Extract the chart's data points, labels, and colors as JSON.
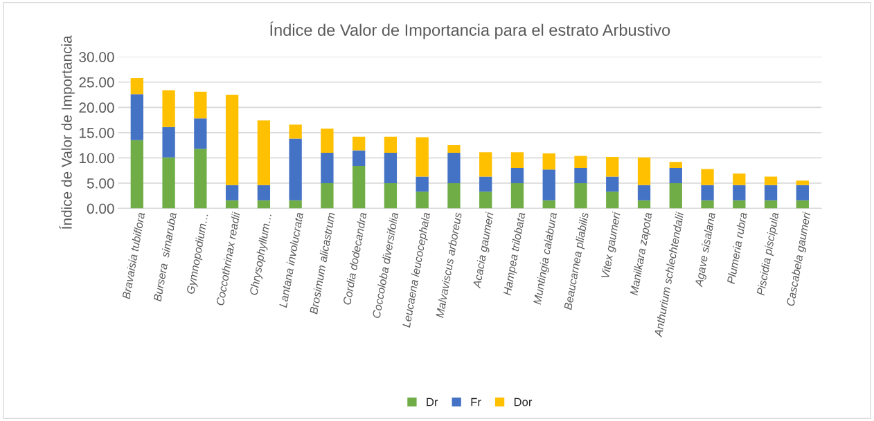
{
  "chart_data": {
    "type": "bar",
    "stacked": true,
    "title": "Índice de Valor de Importancia para el estrato Arbustivo",
    "ylabel": "Índice de Valor de Importancia",
    "categories": [
      "Bravaisia tubiflora",
      "Bursera  simaruba",
      "Gymnopodium…",
      "Coccothrinax readii",
      "Chrysophyllum…",
      "Lantana involucrata",
      "Brosimum alicastrum",
      "Cordia dodecandra",
      "Coccoloba diversifolia",
      "Leucaena leucocephala",
      "Malvaviscus arboreus",
      "Acacia gaumeri",
      "Hampea trilobata",
      "Muntingia calabura",
      "Beaucarnea pliabilis",
      "Vitex gaumeri",
      "Manilkara zapota",
      "Anthurium schlechtendalii",
      "Agave sisalana",
      "Plumeria rubra",
      "Piscidia piscipula",
      "Cascabela gaumeri"
    ],
    "series": [
      {
        "name": "Dr",
        "color": "#70ad47",
        "values": [
          13.5,
          10.1,
          11.8,
          1.6,
          1.6,
          1.6,
          5.0,
          8.4,
          5.0,
          3.3,
          5.0,
          3.3,
          5.0,
          1.6,
          5.0,
          3.3,
          1.6,
          5.0,
          1.6,
          1.6,
          1.6,
          1.6
        ]
      },
      {
        "name": "Fr",
        "color": "#4472c4",
        "values": [
          9.1,
          6.0,
          6.0,
          3.0,
          3.0,
          12.2,
          6.0,
          3.1,
          6.0,
          3.0,
          6.0,
          3.0,
          3.0,
          6.1,
          3.0,
          3.0,
          3.0,
          3.0,
          3.0,
          3.0,
          3.0,
          3.0
        ]
      },
      {
        "name": "Dor",
        "color": "#ffc000",
        "values": [
          3.2,
          7.3,
          5.3,
          17.9,
          12.8,
          2.8,
          4.8,
          2.7,
          3.2,
          7.8,
          1.5,
          4.8,
          3.1,
          3.2,
          2.4,
          3.9,
          5.5,
          1.2,
          3.2,
          2.3,
          1.7,
          0.9
        ]
      }
    ],
    "ylim": [
      0,
      30
    ],
    "yticks": [
      {
        "value": 0,
        "label": "0.00"
      },
      {
        "value": 5,
        "label": "5.00"
      },
      {
        "value": 10,
        "label": "10.00"
      },
      {
        "value": 15,
        "label": "15.00"
      },
      {
        "value": 20,
        "label": "20.00"
      },
      {
        "value": 25,
        "label": "25.00"
      },
      {
        "value": 30,
        "label": "30.00"
      }
    ],
    "grid": "y",
    "legend": "bottom"
  }
}
